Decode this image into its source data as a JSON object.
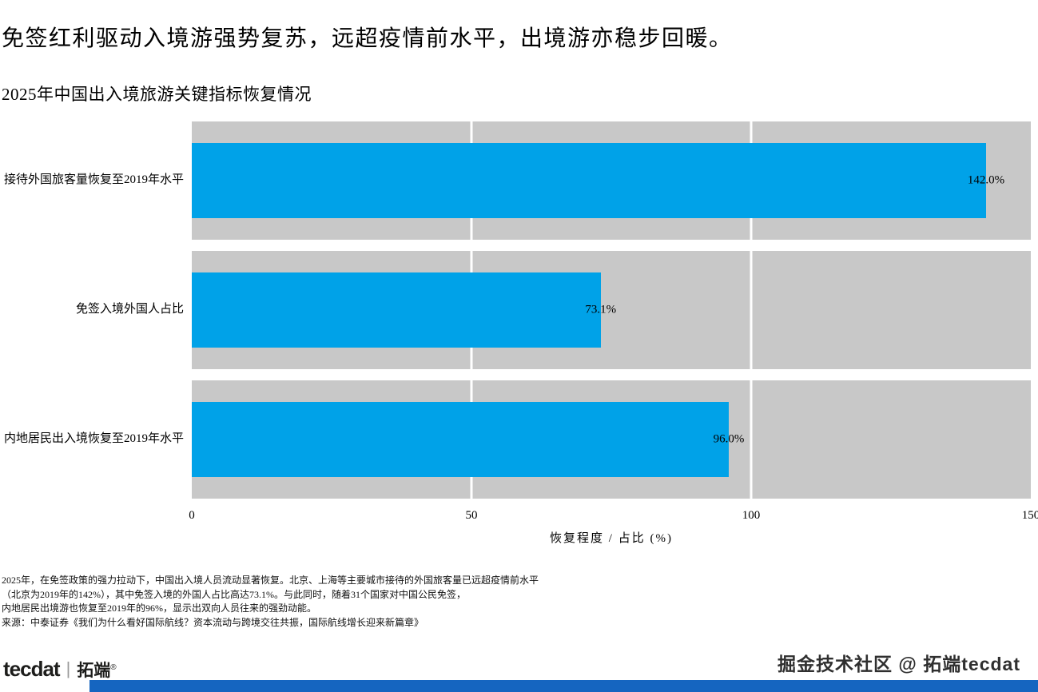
{
  "page": {
    "headline": "免签红利驱动入境游强势复苏，远超疫情前水平，出境游亦稳步回暖。",
    "watermark": "掘金技术社区 @ 拓端tecdat",
    "footer_bar_color": "#1565C0",
    "logo": {
      "brand": "tecdat",
      "divider": "|",
      "brand_cn": "拓端",
      "reg": "®"
    }
  },
  "chart_data": {
    "type": "bar",
    "orientation": "horizontal",
    "title": "2025年中国出入境旅游关键指标恢复情况",
    "categories": [
      "接待外国旅客量恢复至2019年水平",
      "免签入境外国人占比",
      "内地居民出入境恢复至2019年水平"
    ],
    "values": [
      142.0,
      73.1,
      96.0
    ],
    "value_labels": [
      "142.0%",
      "73.1%",
      "96.0%"
    ],
    "xlabel": "恢复程度 / 占比 (%)",
    "xlim": [
      0,
      150
    ],
    "xticks": [
      0,
      50,
      100,
      150
    ],
    "gridlines": [
      50,
      100
    ],
    "grid": true,
    "legend": "none",
    "bar_color": "#00A2E8",
    "track_color": "#C8C8C8"
  },
  "notes": {
    "lines": [
      "2025年，在免签政策的强力拉动下，中国出入境人员流动显著恢复。北京、上海等主要城市接待的外国旅客量已远超疫情前水平",
      "（北京为2019年的142%），其中免签入境的外国人占比高达73.1%。与此同时，随着31个国家对中国公民免签，",
      "内地居民出境游也恢复至2019年的96%，显示出双向人员往来的强劲动能。",
      "来源：中泰证券《我们为什么看好国际航线？资本流动与跨境交往共振，国际航线增长迎来新篇章》"
    ]
  }
}
